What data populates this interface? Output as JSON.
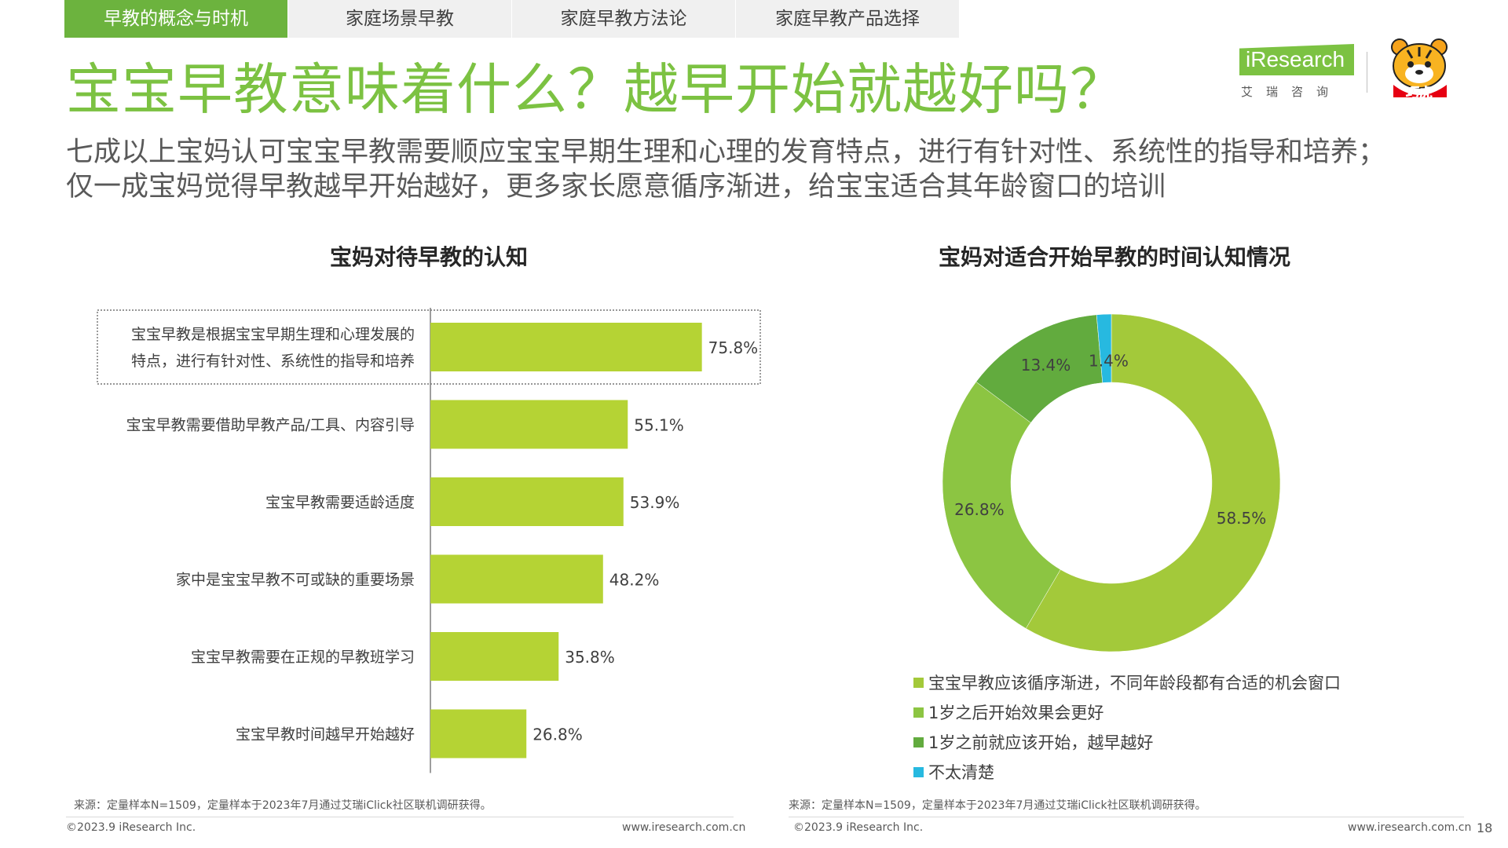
{
  "tabs": [
    {
      "label": "早教的概念与时机",
      "active": true
    },
    {
      "label": "家庭场景早教",
      "active": false
    },
    {
      "label": "家庭早教方法论",
      "active": false
    },
    {
      "label": "家庭早教产品选择",
      "active": false
    }
  ],
  "page_title": "宝宝早教意味着什么？越早开始就越好吗？",
  "subtitle": {
    "line1": "七成以上宝妈认可宝宝早教需要顺应宝宝早期生理和心理的发育特点，进行有针对性、系统性的指导和培养；",
    "line2": "仅一成宝妈觉得早教越早开始越好，更多家长愿意循序渐进，给宝宝适合其年龄窗口的培训"
  },
  "brand": {
    "name": "iResearch",
    "cn": "艾瑞咨询",
    "partner": "巧虎"
  },
  "colors": {
    "accent_green": "#7cc242",
    "tab_active": "#6cb33e",
    "bar": "#b5d334",
    "donut": [
      "#a3c93a",
      "#8cc542",
      "#62ab3e",
      "#27b9e0"
    ]
  },
  "chart_data": [
    {
      "type": "bar",
      "orientation": "horizontal",
      "title": "宝妈对待早教的认知",
      "categories": [
        [
          "宝宝早教是根据宝宝早期生理和心理发展的",
          "特点，进行有针对性、系统性的指导和培养"
        ],
        [
          "宝宝早教需要借助早教产品/工具、内容引导"
        ],
        [
          "宝宝早教需要适龄适度"
        ],
        [
          "家中是宝宝早教不可或缺的重要场景"
        ],
        [
          "宝宝早教需要在正规的早教班学习"
        ],
        [
          "宝宝早教时间越早开始越好"
        ]
      ],
      "values": [
        75.8,
        55.1,
        53.9,
        48.2,
        35.8,
        26.8
      ],
      "value_labels": [
        "75.8%",
        "55.1%",
        "53.9%",
        "48.2%",
        "35.8%",
        "26.8%"
      ],
      "xlim": [
        0,
        100
      ],
      "highlighted_index": 0
    },
    {
      "type": "pie",
      "variant": "donut",
      "title": "宝妈对适合开始早教的时间认知情况",
      "labels": [
        "宝宝早教应该循序渐进，不同年龄段都有合适的机会窗口",
        "1岁之后开始效果会更好",
        "1岁之前就应该开始，越早越好",
        "不太清楚"
      ],
      "values": [
        58.5,
        26.8,
        13.4,
        1.4
      ],
      "value_labels": [
        "58.5%",
        "26.8%",
        "13.4%",
        "1.4%"
      ],
      "legend_position": "bottom"
    }
  ],
  "footer": {
    "source": "来源：定量样本N=1509，定量样本于2023年7月通过艾瑞iClick社区联机调研获得。",
    "copyright": "©2023.9 iResearch Inc.",
    "website": "www.iresearch.com.cn",
    "page_number": "18"
  }
}
